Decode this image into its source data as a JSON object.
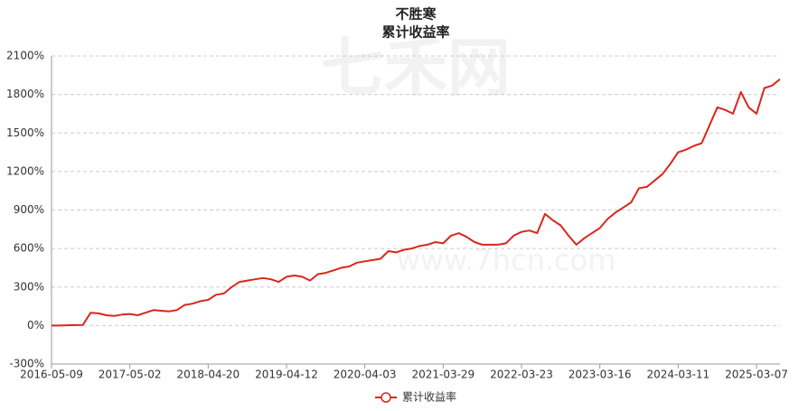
{
  "chart_data": {
    "type": "line",
    "title": "不胜寒",
    "subtitle": "累计收益率",
    "watermark": "七禾网",
    "watermark_url": "www.7hcn.com",
    "categories": [
      "2016-05-09",
      null,
      null,
      null,
      null,
      null,
      null,
      null,
      null,
      null,
      "2017-05-02",
      null,
      null,
      null,
      null,
      null,
      null,
      null,
      null,
      null,
      "2018-04-20",
      null,
      null,
      null,
      null,
      null,
      null,
      null,
      null,
      null,
      "2019-04-12",
      null,
      null,
      null,
      null,
      null,
      null,
      null,
      null,
      null,
      "2020-04-03",
      null,
      null,
      null,
      null,
      null,
      null,
      null,
      null,
      null,
      "2021-03-29",
      null,
      null,
      null,
      null,
      null,
      null,
      null,
      null,
      null,
      "2022-03-23",
      null,
      null,
      null,
      null,
      null,
      null,
      null,
      null,
      null,
      "2023-03-16",
      null,
      null,
      null,
      null,
      null,
      null,
      null,
      null,
      null,
      "2024-03-11",
      null,
      null,
      null,
      null,
      null,
      null,
      null,
      null,
      null,
      "2025-03-07",
      null,
      null,
      null
    ],
    "series": [
      {
        "name": "累计收益率",
        "color": "#d9261c",
        "values": [
          0,
          0,
          2,
          3,
          5,
          100,
          95,
          80,
          75,
          85,
          90,
          80,
          100,
          120,
          115,
          110,
          120,
          160,
          170,
          190,
          200,
          240,
          250,
          300,
          340,
          350,
          360,
          370,
          360,
          340,
          380,
          390,
          380,
          350,
          400,
          410,
          430,
          450,
          460,
          490,
          500,
          510,
          520,
          580,
          570,
          590,
          600,
          620,
          630,
          650,
          640,
          700,
          720,
          690,
          650,
          630,
          630,
          630,
          640,
          700,
          730,
          740,
          720,
          870,
          820,
          780,
          700,
          630,
          680,
          720,
          760,
          830,
          880,
          920,
          960,
          1070,
          1080,
          1130,
          1180,
          1260,
          1350,
          1370,
          1400,
          1420,
          1560,
          1700,
          1680,
          1650,
          1820,
          1700,
          1650,
          1850,
          1870,
          1920
        ]
      }
    ],
    "ylim": [
      -300,
      2100
    ],
    "yticks": [
      {
        "value": -300,
        "label": "-300%"
      },
      {
        "value": 0,
        "label": "0%"
      },
      {
        "value": 300,
        "label": "300%"
      },
      {
        "value": 600,
        "label": "600%"
      },
      {
        "value": 900,
        "label": "900%"
      },
      {
        "value": 1200,
        "label": "1200%"
      },
      {
        "value": 1500,
        "label": "1500%"
      },
      {
        "value": 1800,
        "label": "1800%"
      },
      {
        "value": 2100,
        "label": "2100%"
      }
    ],
    "grid": true
  }
}
